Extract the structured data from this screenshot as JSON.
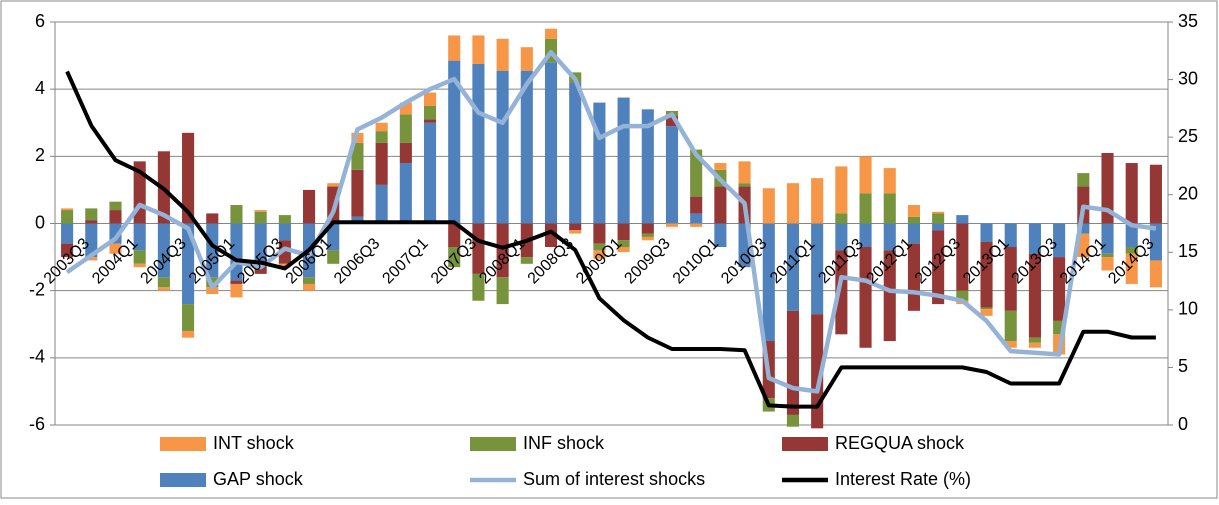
{
  "chart_data": {
    "type": "bar",
    "stacked": true,
    "categories": [
      "2003Q3",
      null,
      "2004Q1",
      null,
      "2004Q3",
      null,
      "2005Q1",
      null,
      "2005Q3",
      null,
      "2006Q1",
      null,
      "2006Q3",
      null,
      "2007Q1",
      null,
      "2007Q3",
      null,
      "2008Q1",
      null,
      "2008Q3",
      null,
      "2009Q1",
      null,
      "2009Q3",
      null,
      "2010Q1",
      null,
      "2010Q3",
      null,
      "2011Q1",
      null,
      "2011Q3",
      null,
      "2012Q1",
      null,
      "2012Q3",
      null,
      "2013Q1",
      null,
      "2013Q3",
      null,
      "2014Q1",
      null,
      "2014Q3",
      null
    ],
    "ylim": [
      -6,
      6
    ],
    "yticks": [
      -6,
      -4,
      -2,
      0,
      2,
      4,
      6
    ],
    "y2lim": [
      0,
      35
    ],
    "y2ticks": [
      0,
      5,
      10,
      15,
      20,
      25,
      30,
      35
    ],
    "grid": true,
    "legend": "bottom",
    "series": [
      {
        "name": "INT shock",
        "type": "bar",
        "color": "#f79646",
        "values": [
          0.05,
          -0.1,
          -0.3,
          -0.1,
          -0.1,
          -0.2,
          -0.2,
          -0.4,
          0.05,
          -0.1,
          -0.2,
          0.1,
          0.3,
          0.25,
          0.35,
          0.4,
          0.75,
          0.85,
          0.95,
          0.7,
          0.3,
          -0.1,
          -0.25,
          -0.15,
          -0.1,
          -0.1,
          -0.1,
          0.2,
          0.65,
          1.05,
          1.2,
          1.35,
          1.4,
          1.1,
          0.75,
          0.35,
          0.05,
          -0.1,
          -0.2,
          -0.2,
          -0.15,
          -0.6,
          -0.7,
          -0.4,
          -0.9,
          -0.8
        ]
      },
      {
        "name": "INF shock",
        "type": "bar",
        "color": "#77933c",
        "values": [
          0.4,
          0.35,
          0.25,
          -0.4,
          -0.3,
          -0.8,
          -0.3,
          0.55,
          0.35,
          0.25,
          -0.2,
          -0.4,
          0.8,
          0.35,
          0.85,
          0.4,
          -0.6,
          -0.8,
          -0.8,
          -0.2,
          0.7,
          0.3,
          -0.2,
          -0.2,
          -0.1,
          0.15,
          1.4,
          0.5,
          0.1,
          -0.4,
          -0.35,
          0,
          0.3,
          0.9,
          0.9,
          0.2,
          0.3,
          -0.3,
          -0.05,
          -0.9,
          -0.15,
          -0.4,
          0.4,
          -0.1,
          -0.2,
          0
        ]
      },
      {
        "name": "REGQUA shock",
        "type": "bar",
        "color": "#953735",
        "values": [
          -0.4,
          0.1,
          0.4,
          1.85,
          2.15,
          2.7,
          0.3,
          -0.1,
          -0.4,
          -0.7,
          1.0,
          1.1,
          1.4,
          1.25,
          0.6,
          0.1,
          -0.7,
          -1.5,
          -1.6,
          -1.0,
          -0.7,
          -0.2,
          -0.6,
          -0.5,
          -0.3,
          0.3,
          0.5,
          1.1,
          1.1,
          -1.7,
          -3.1,
          -3.4,
          -2.5,
          -3.0,
          -2.7,
          -2.0,
          -2.2,
          -2.0,
          -1.95,
          -1.9,
          -2.5,
          -1.9,
          1.1,
          2.1,
          1.8,
          1.75
        ]
      },
      {
        "name": "GAP shock",
        "type": "bar",
        "color": "#4f81bd",
        "values": [
          -0.6,
          -1.0,
          -0.6,
          -0.8,
          -1.6,
          -2.4,
          -1.6,
          -1.7,
          -1.1,
          -0.5,
          -1.6,
          -0.8,
          0.2,
          1.15,
          1.8,
          3.0,
          4.85,
          4.75,
          4.55,
          4.55,
          4.8,
          4.2,
          3.6,
          3.75,
          3.4,
          2.9,
          0.3,
          -0.7,
          -1.3,
          -3.5,
          -2.6,
          -2.7,
          -0.8,
          -0.7,
          -0.8,
          -0.6,
          -0.2,
          0.25,
          -0.55,
          -0.7,
          -0.9,
          -1.0,
          -0.3,
          -0.9,
          -0.7,
          -1.1
        ]
      },
      {
        "name": "Sum of interest shocks",
        "type": "line",
        "color": "#95b3d7",
        "values": [
          -1.45,
          -0.95,
          -0.45,
          0.55,
          0.25,
          -0.15,
          -1.9,
          -1.15,
          -1.3,
          -0.75,
          -0.95,
          0.35,
          2.8,
          3.15,
          3.6,
          4.0,
          4.3,
          3.3,
          3.0,
          4.15,
          5.1,
          4.3,
          2.55,
          2.9,
          2.9,
          3.25,
          2.05,
          1.3,
          0.6,
          -4.6,
          -4.9,
          -5.0,
          -1.6,
          -1.7,
          -2.0,
          -2.05,
          -2.15,
          -2.3,
          -2.9,
          -3.8,
          -3.85,
          -3.9,
          0.5,
          0.4,
          -0.05,
          -0.15
        ]
      },
      {
        "name": "Interest Rate (%)",
        "type": "line",
        "axis": "y2",
        "color": "#000000",
        "values": [
          30.7,
          26,
          23,
          22,
          20.5,
          18.5,
          15.6,
          14.3,
          14.1,
          13.6,
          15.2,
          17.6,
          17.6,
          17.6,
          17.6,
          17.6,
          17.6,
          16,
          15.4,
          16,
          16.8,
          15.2,
          11,
          9.1,
          7.6,
          6.6,
          6.6,
          6.6,
          6.5,
          1.7,
          1.6,
          1.6,
          5,
          5,
          5,
          5,
          5,
          5,
          4.6,
          3.6,
          3.6,
          3.6,
          8.1,
          8.1,
          7.6,
          7.6
        ]
      }
    ]
  }
}
